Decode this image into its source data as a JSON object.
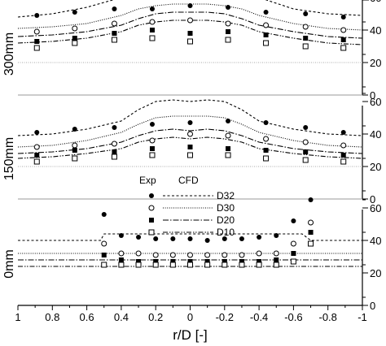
{
  "chart_data": {
    "type": "scatter",
    "xlabel": "r/D [-]",
    "xlim": [
      1,
      -1
    ],
    "x_ticks": [
      "1",
      "0.8",
      "0.6",
      "0.4",
      "0.2",
      "0",
      "-0.2",
      "-0.4",
      "-0.6",
      "-0.8",
      "-1"
    ],
    "legend": {
      "exp_header": "Exp",
      "cfd_header": "CFD",
      "entries": [
        {
          "marker": "filled-circle",
          "line": "dashed",
          "label": "D32"
        },
        {
          "marker": "open-circle",
          "line": "dotted",
          "label": "D30"
        },
        {
          "marker": "filled-square",
          "line": "dash-dot",
          "label": "D20"
        },
        {
          "marker": "open-square",
          "line": "dash-dot-dot",
          "label": "D10"
        }
      ]
    },
    "panels": [
      {
        "label": "300mm",
        "ylim": [
          0,
          70
        ],
        "y_ticks": [
          "0",
          "20",
          "40",
          "60"
        ],
        "exp": {
          "x": [
            0.89,
            0.67,
            0.44,
            0.22,
            0.0,
            -0.22,
            -0.44,
            -0.67,
            -0.89
          ],
          "D32": [
            49,
            51,
            53,
            53,
            55,
            54,
            51,
            50,
            48
          ],
          "D30": [
            39,
            41,
            44,
            45,
            46,
            44,
            43,
            42,
            40
          ],
          "D20": [
            33,
            35,
            38,
            40,
            38,
            39,
            37,
            35,
            34
          ],
          "D10": [
            29,
            32,
            34,
            35,
            33,
            34,
            32,
            30,
            29
          ]
        },
        "cfd": {
          "x": [
            1,
            0.8,
            0.6,
            0.4,
            0.3,
            0.2,
            0.1,
            0.0,
            -0.1,
            -0.2,
            -0.3,
            -0.4,
            -0.6,
            -0.8,
            -1
          ],
          "D32": [
            48,
            50,
            54,
            60,
            65,
            68,
            69,
            69,
            69,
            68,
            65,
            60,
            53,
            50,
            49
          ],
          "D30": [
            41,
            42,
            44,
            49,
            53,
            55,
            56,
            56,
            56,
            55,
            53,
            49,
            44,
            41,
            40
          ],
          "D20": [
            36,
            37,
            39,
            43,
            47,
            50,
            51,
            51,
            51,
            50,
            47,
            43,
            39,
            36,
            35
          ],
          "D10": [
            32,
            33,
            35,
            39,
            43,
            45,
            46,
            46,
            46,
            45,
            43,
            39,
            35,
            32,
            31
          ]
        },
        "ref": 20
      },
      {
        "label": "150mm",
        "ylim": [
          0,
          70
        ],
        "y_ticks": [
          "0",
          "20",
          "40",
          "60"
        ],
        "exp": {
          "x": [
            0.89,
            0.67,
            0.44,
            0.22,
            0.0,
            -0.22,
            -0.44,
            -0.67,
            -0.89
          ],
          "D32": [
            41,
            43,
            44,
            46,
            47,
            48,
            47,
            44,
            41
          ],
          "D30": [
            32,
            33,
            34,
            36,
            40,
            39,
            37,
            35,
            33
          ],
          "D20": [
            27,
            30,
            29,
            31,
            32,
            31,
            30,
            29,
            27
          ],
          "D10": [
            23,
            25,
            26,
            27,
            27,
            27,
            25,
            24,
            23
          ]
        },
        "cfd": {
          "x": [
            1,
            0.8,
            0.6,
            0.4,
            0.3,
            0.2,
            0.1,
            0.0,
            -0.1,
            -0.2,
            -0.3,
            -0.4,
            -0.6,
            -0.8,
            -1
          ],
          "D32": [
            39,
            40,
            43,
            48,
            55,
            60,
            61,
            60,
            61,
            60,
            55,
            48,
            43,
            40,
            39
          ],
          "D30": [
            32,
            33,
            36,
            41,
            46,
            50,
            51,
            51,
            51,
            50,
            46,
            41,
            36,
            33,
            32
          ],
          "D20": [
            28,
            29,
            31,
            35,
            39,
            42,
            43,
            42,
            43,
            42,
            39,
            35,
            31,
            29,
            28
          ],
          "D10": [
            25,
            26,
            28,
            31,
            35,
            37,
            38,
            37,
            38,
            37,
            35,
            31,
            28,
            26,
            25
          ]
        },
        "ref": 20
      },
      {
        "label": "0mm",
        "ylim": [
          0,
          70
        ],
        "y_ticks": [
          "0",
          "20",
          "40",
          "60"
        ],
        "exp": {
          "x": [
            0.5,
            0.4,
            0.3,
            0.2,
            0.1,
            0.0,
            -0.1,
            -0.2,
            -0.3,
            -0.4,
            -0.5,
            -0.6,
            -0.7
          ],
          "D32": [
            56,
            43,
            42,
            41,
            41,
            41,
            40,
            41,
            41,
            42,
            43,
            52,
            65
          ],
          "D30": [
            38,
            32,
            32,
            31,
            31,
            31,
            31,
            31,
            31,
            32,
            32,
            38,
            51
          ],
          "D20": [
            31,
            28,
            27,
            27,
            27,
            27,
            27,
            27,
            27,
            27,
            28,
            32,
            45
          ],
          "D10": [
            25,
            25,
            25,
            25,
            25,
            25,
            25,
            25,
            25,
            25,
            25,
            27,
            38
          ]
        },
        "cfd": {
          "x": [
            1,
            0.52,
            0.5,
            0.45,
            -0.6,
            -0.65,
            -0.7,
            -1
          ],
          "D32": [
            40,
            40,
            44,
            44,
            44,
            44,
            40,
            40
          ],
          "D30": [
            32,
            32,
            32,
            32,
            32,
            32,
            32,
            32
          ],
          "D20": [
            28,
            28,
            28,
            28,
            28,
            28,
            28,
            28
          ],
          "D10": [
            24,
            24,
            24,
            24,
            24,
            24,
            24,
            24
          ]
        },
        "ref": null
      }
    ]
  }
}
